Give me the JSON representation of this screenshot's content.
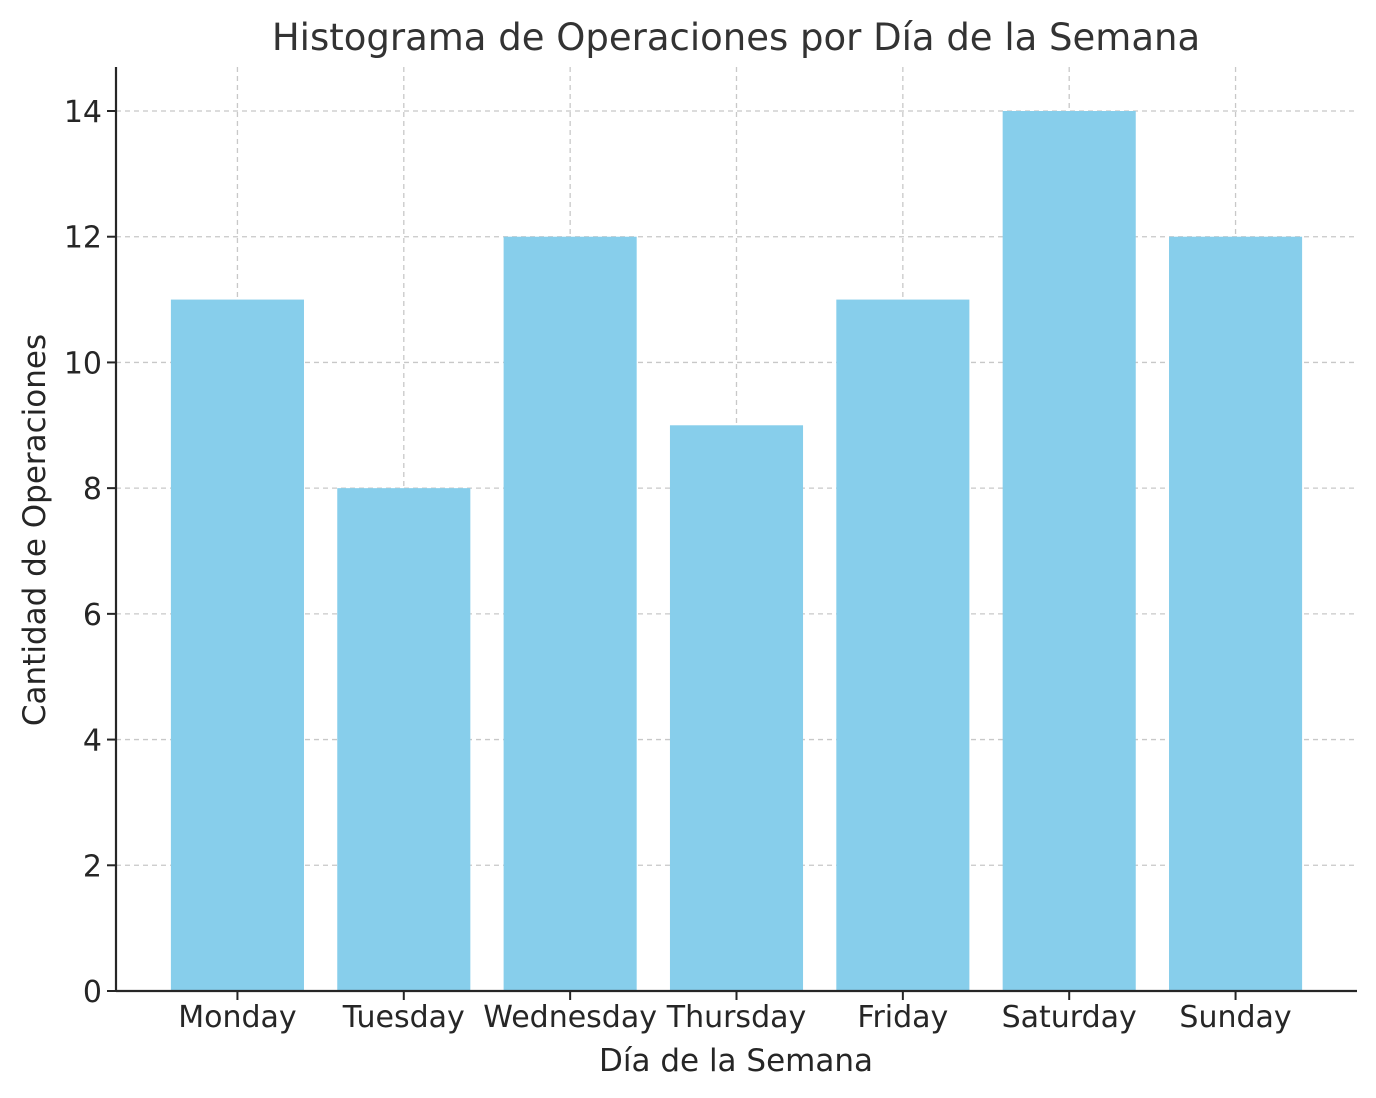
{
  "chart_data": {
    "type": "bar",
    "title": "Histograma de Operaciones por Día de la Semana",
    "xlabel": "Día de la Semana",
    "ylabel": "Cantidad de Operaciones",
    "categories": [
      "Monday",
      "Tuesday",
      "Wednesday",
      "Thursday",
      "Friday",
      "Saturday",
      "Sunday"
    ],
    "values": [
      11,
      8,
      12,
      9,
      11,
      14,
      12
    ],
    "ylim": [
      0,
      14.7
    ],
    "yticks": [
      0,
      2,
      4,
      6,
      8,
      10,
      12,
      14
    ],
    "grid": true,
    "bar_color": "#87CEEB"
  }
}
